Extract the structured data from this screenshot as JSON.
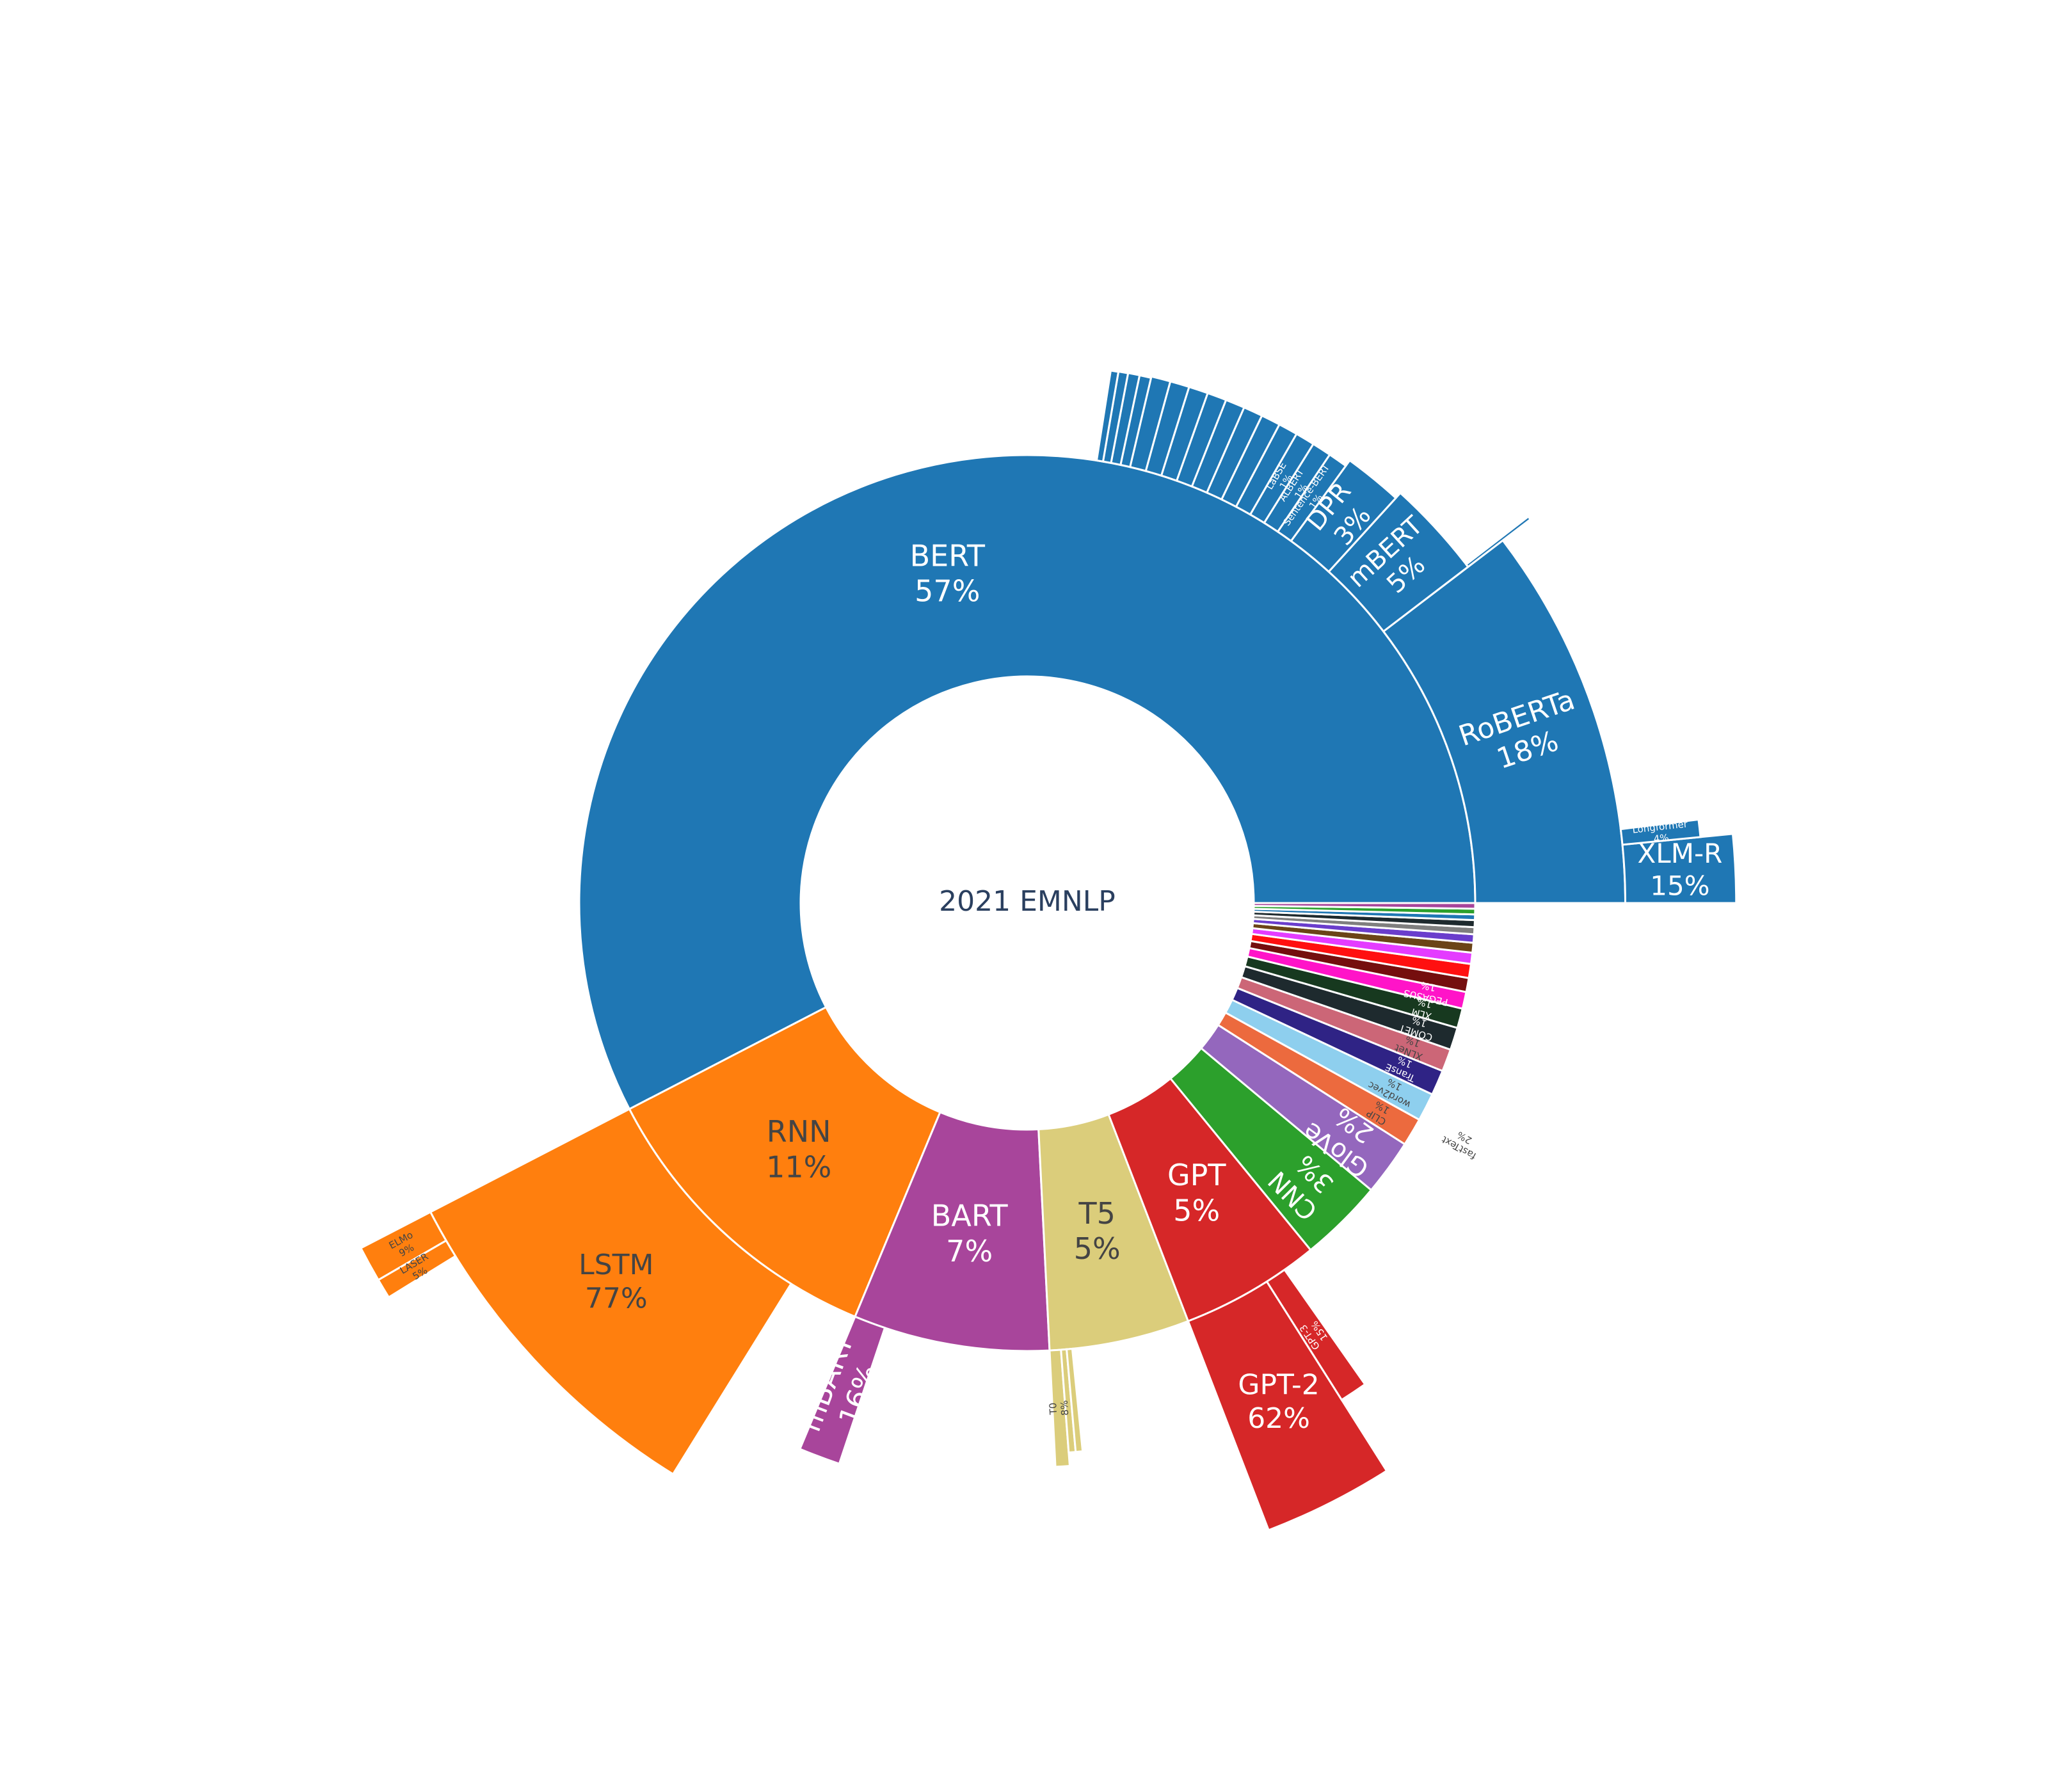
{
  "chart_data": {
    "type": "sunburst",
    "title": "",
    "center_label": "2021 EMNLP",
    "colors": {
      "bert": "#1f77b4",
      "rnn": "#ff7f0e",
      "bart": "#a8459b",
      "t5": "#dbcd7b",
      "gpt": "#d62728",
      "cnn": "#2ca02c",
      "glove": "#9467bd",
      "clip": "#ec6a3e",
      "word2vec": "#8ecfee",
      "transe": "#2f2385",
      "xlnet": "#cc6677",
      "comet": "#1e2a2e",
      "elmo_like": "#17391f",
      "pegasus": "#ff14c8",
      "darkred": "#750e0e",
      "red": "#ff1010",
      "magenta": "#e43cff",
      "brown": "#6b4417",
      "gray": "#7f7f7f",
      "violet": "#6a3dcc"
    },
    "families": [
      {
        "name": "BERT",
        "pct": "57%",
        "share": 57.0,
        "color_key": "bert",
        "label_color": "#ffffff",
        "children": [
          {
            "name": "RoBERTa",
            "pct": "18%",
            "share": 18,
            "label": true,
            "children": [
              {
                "name": "XLM-R",
                "pct": "15%",
                "share": 15
              },
              {
                "name": "Longformer",
                "pct": "4%",
                "share": 4
              }
            ]
          },
          {
            "name": "mBERT",
            "pct": "5%",
            "share": 5,
            "label": true,
            "children": [
              {
                "name": "",
                "pct": "",
                "share": 3
              }
            ]
          },
          {
            "name": "DPR",
            "pct": "3%",
            "share": 3,
            "label": true
          },
          {
            "name": "Sentence-BERT",
            "pct": "1%",
            "share": 1,
            "label": true,
            "small": true
          },
          {
            "name": "ALBERT",
            "pct": "1%",
            "share": 1,
            "label": true,
            "small": true
          },
          {
            "name": "LaBSE",
            "pct": "1%",
            "share": 1,
            "label": true,
            "small": true
          },
          {
            "name": "",
            "pct": "",
            "share": 1
          },
          {
            "name": "",
            "pct": "",
            "share": 1
          },
          {
            "name": "",
            "pct": "",
            "share": 1
          },
          {
            "name": "",
            "pct": "",
            "share": 1
          },
          {
            "name": "",
            "pct": "",
            "share": 1
          },
          {
            "name": "",
            "pct": "",
            "share": 1
          },
          {
            "name": "",
            "pct": "",
            "share": 1
          },
          {
            "name": "",
            "pct": "",
            "share": 1
          },
          {
            "name": "",
            "pct": "",
            "share": 0.6
          },
          {
            "name": "",
            "pct": "",
            "share": 0.6
          },
          {
            "name": "",
            "pct": "",
            "share": 0.5
          },
          {
            "name": "",
            "pct": "",
            "share": 0.4
          }
        ]
      },
      {
        "name": "RNN",
        "pct": "11%",
        "share": 11,
        "color_key": "rnn",
        "label_color": "#444444",
        "children": [
          {
            "name": "LSTM",
            "pct": "77%",
            "share": 77,
            "label": true,
            "children": [
              {
                "name": "ELMo",
                "pct": "9%",
                "share": 9
              },
              {
                "name": "LASER",
                "pct": "5%",
                "share": 5
              }
            ]
          }
        ]
      },
      {
        "name": "BART",
        "pct": "7%",
        "share": 7,
        "color_key": "bart",
        "label_color": "#ffffff",
        "children": [
          {
            "name": "mBART",
            "pct": "16%",
            "share": 16,
            "label": true
          }
        ]
      },
      {
        "name": "T5",
        "pct": "5%",
        "share": 5,
        "color_key": "t5",
        "label_color": "#444444",
        "children": [
          {
            "name": "T0",
            "pct": "8%",
            "share": 8,
            "label": true,
            "small": true
          },
          {
            "name": "",
            "pct": "",
            "share": 4
          },
          {
            "name": "",
            "pct": "",
            "share": 4
          }
        ]
      },
      {
        "name": "GPT",
        "pct": "5%",
        "share": 5,
        "color_key": "gpt",
        "label_color": "#ffffff",
        "children": [
          {
            "name": "GPT-2",
            "pct": "62%",
            "share": 62,
            "label": true,
            "children": [
              {
                "name": "",
                "pct": "",
                "share": 1
              }
            ]
          },
          {
            "name": "GPT-3",
            "pct": "15%",
            "share": 15,
            "label": true,
            "small": true
          }
        ]
      },
      {
        "name": "CNN",
        "pct": "3%",
        "share": 3,
        "color_key": "cnn",
        "label_color": "#ffffff"
      },
      {
        "name": "GloVe",
        "pct": "2%",
        "share": 2,
        "color_key": "glove",
        "label_color": "#ffffff"
      },
      {
        "name": "CLIP",
        "pct": "1%",
        "share": 1,
        "color_key": "clip",
        "label_color": "#444444"
      },
      {
        "name": "word2vec",
        "pct": "1%",
        "share": 1,
        "color_key": "word2vec",
        "label_color": "#444444",
        "children": [
          {
            "name": "fastText",
            "pct": "2%",
            "share": 2,
            "label": true,
            "small": true
          }
        ]
      },
      {
        "name": "TransE",
        "pct": "1%",
        "share": 0.9,
        "color_key": "transe",
        "label_color": "#ffffff",
        "children": [
          {
            "name": "",
            "pct": "",
            "share": 2
          }
        ]
      },
      {
        "name": "XLNet",
        "pct": "1%",
        "share": 0.8,
        "color_key": "xlnet",
        "label_color": "#444444"
      },
      {
        "name": "COMET",
        "pct": "1%",
        "share": 0.8,
        "color_key": "comet",
        "label_color": "#ffffff"
      },
      {
        "name": "XLM",
        "pct": "1%",
        "share": 0.7,
        "color_key": "elmo_like",
        "label_color": "#ffffff"
      },
      {
        "name": "PEGASUS",
        "pct": "1%",
        "share": 0.6,
        "color_key": "pegasus",
        "label_color": "#ffffff"
      },
      {
        "name": "",
        "pct": "",
        "share": 0.5,
        "color_key": "darkred"
      },
      {
        "name": "",
        "pct": "",
        "share": 0.5,
        "color_key": "red"
      },
      {
        "name": "",
        "pct": "",
        "share": 0.4,
        "color_key": "magenta"
      },
      {
        "name": "",
        "pct": "",
        "share": 0.35,
        "color_key": "brown"
      },
      {
        "name": "",
        "pct": "",
        "share": 0.3,
        "color_key": "violet",
        "children": [
          {
            "name": "",
            "pct": "",
            "share": 2
          }
        ]
      },
      {
        "name": "",
        "pct": "",
        "share": 0.25,
        "color_key": "gray",
        "children": [
          {
            "name": "",
            "pct": "",
            "share": 3
          }
        ]
      },
      {
        "name": "",
        "pct": "",
        "share": 0.25,
        "color_key": "comet"
      },
      {
        "name": "",
        "pct": "",
        "share": 0.2,
        "color_key": "bert"
      },
      {
        "name": "",
        "pct": "",
        "share": 0.2,
        "color_key": "cnn"
      },
      {
        "name": "",
        "pct": "",
        "share": 0.2,
        "color_key": "bart"
      }
    ]
  }
}
